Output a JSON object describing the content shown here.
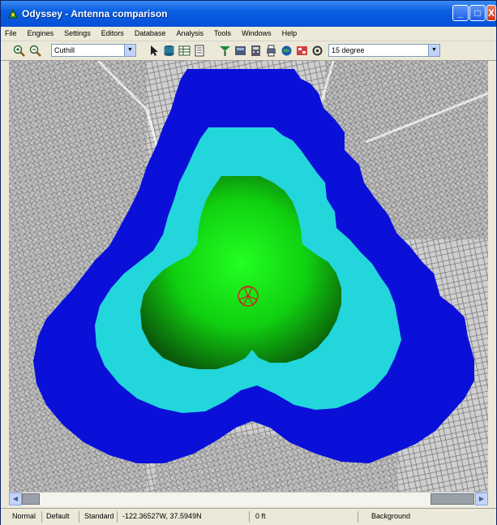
{
  "window": {
    "title": "Odyssey - Antenna comparison"
  },
  "title_buttons": {
    "minimize": "_",
    "maximize": "□",
    "close": "X"
  },
  "menu": [
    "File",
    "Engines",
    "Settings",
    "Editors",
    "Database",
    "Analysis",
    "Tools",
    "Windows",
    "Help"
  ],
  "toolbar": {
    "layer_combo_value": "Cuthill",
    "angle_combo_value": "15 degree"
  },
  "map": {
    "coverage_colors": {
      "outer": "#0a10d8",
      "mid": "#22d6dc",
      "inner": "#10e010",
      "inner_dark": "#0a5a0a",
      "site": "#c03020"
    }
  },
  "status": {
    "mode": "Normal",
    "profile": "Default",
    "type": "Standard",
    "coords": "-122.36527W, 37.5949N",
    "value": "0 ft",
    "layer": "Background"
  }
}
